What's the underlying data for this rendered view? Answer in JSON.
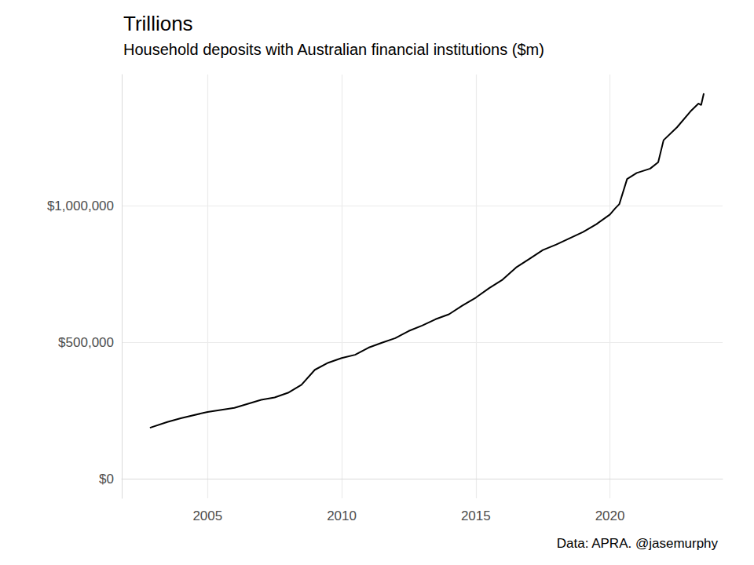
{
  "chart_data": {
    "type": "line",
    "title": "Trillions",
    "subtitle": "Household deposits with Australian financial institutions ($m)",
    "caption": "Data: APRA. @jasemurphy",
    "x": [
      2002.85,
      2003.5,
      2004.0,
      2005.0,
      2006.0,
      2007.0,
      2007.5,
      2008.0,
      2008.5,
      2009.0,
      2009.5,
      2010.0,
      2010.5,
      2011.0,
      2011.5,
      2012.0,
      2012.5,
      2013.0,
      2013.5,
      2014.0,
      2014.5,
      2015.0,
      2015.5,
      2016.0,
      2016.5,
      2017.0,
      2017.5,
      2018.0,
      2018.5,
      2019.0,
      2019.5,
      2020.0,
      2020.2,
      2020.35,
      2020.64,
      2021.0,
      2021.5,
      2021.8,
      2022.0,
      2022.5,
      2023.0,
      2023.3,
      2023.4,
      2023.5
    ],
    "values": [
      188000,
      209000,
      223000,
      246000,
      261000,
      290000,
      299000,
      316000,
      345000,
      400000,
      426000,
      443000,
      455000,
      481000,
      499000,
      516000,
      542000,
      562000,
      585000,
      603000,
      635000,
      664000,
      699000,
      730000,
      774000,
      806000,
      838000,
      858000,
      881000,
      904000,
      933000,
      968000,
      991000,
      1006000,
      1098000,
      1120000,
      1136000,
      1159000,
      1240000,
      1287000,
      1345000,
      1374000,
      1368000,
      1411000
    ],
    "color": "#000000",
    "xlim": [
      2001.8,
      2024.2
    ],
    "xticks": [
      2005,
      2010,
      2015,
      2020
    ],
    "ylim": [
      -70000,
      1480000
    ],
    "yticks": [
      {
        "value": 0,
        "label": "$0"
      },
      {
        "value": 500000,
        "label": "$500,000"
      },
      {
        "value": 1000000,
        "label": "$1,000,000"
      }
    ],
    "grid": true
  }
}
